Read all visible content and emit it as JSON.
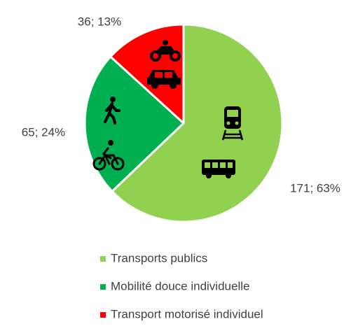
{
  "chart_data": {
    "type": "pie",
    "categories": [
      "Transports publics",
      "Mobilité douce individuelle",
      "Transport motorisé individuel"
    ],
    "values": [
      171,
      65,
      36
    ],
    "value_labels": [
      "171; 63%",
      "65; 24%",
      "36; 13%"
    ],
    "colors": [
      "#92d050",
      "#00b050",
      "#ff0000"
    ],
    "legend": "bottom"
  }
}
